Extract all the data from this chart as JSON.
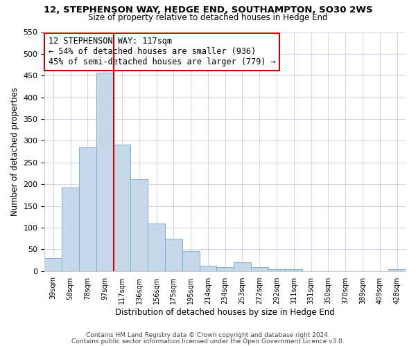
{
  "title": "12, STEPHENSON WAY, HEDGE END, SOUTHAMPTON, SO30 2WS",
  "subtitle": "Size of property relative to detached houses in Hedge End",
  "xlabel": "Distribution of detached houses by size in Hedge End",
  "ylabel": "Number of detached properties",
  "bar_labels": [
    "39sqm",
    "58sqm",
    "78sqm",
    "97sqm",
    "117sqm",
    "136sqm",
    "156sqm",
    "175sqm",
    "195sqm",
    "214sqm",
    "234sqm",
    "253sqm",
    "272sqm",
    "292sqm",
    "311sqm",
    "331sqm",
    "350sqm",
    "370sqm",
    "389sqm",
    "409sqm",
    "428sqm"
  ],
  "bar_values": [
    30,
    192,
    285,
    457,
    291,
    212,
    110,
    74,
    46,
    13,
    9,
    21,
    9,
    5,
    5,
    0,
    0,
    0,
    0,
    0,
    4
  ],
  "bar_color": "#c8d8eb",
  "bar_edgecolor": "#7bafd4",
  "vline_x_index": 3,
  "vline_color": "#cc0000",
  "ylim": [
    0,
    550
  ],
  "yticks": [
    0,
    50,
    100,
    150,
    200,
    250,
    300,
    350,
    400,
    450,
    500,
    550
  ],
  "annotation_title": "12 STEPHENSON WAY: 117sqm",
  "annotation_line1": "← 54% of detached houses are smaller (936)",
  "annotation_line2": "45% of semi-detached houses are larger (779) →",
  "annotation_box_color": "#cc0000",
  "footer_line1": "Contains HM Land Registry data © Crown copyright and database right 2024.",
  "footer_line2": "Contains public sector information licensed under the Open Government Licence v3.0.",
  "bg_color": "#ffffff",
  "plot_bg_color": "#ffffff",
  "grid_color": "#d0d8e8"
}
